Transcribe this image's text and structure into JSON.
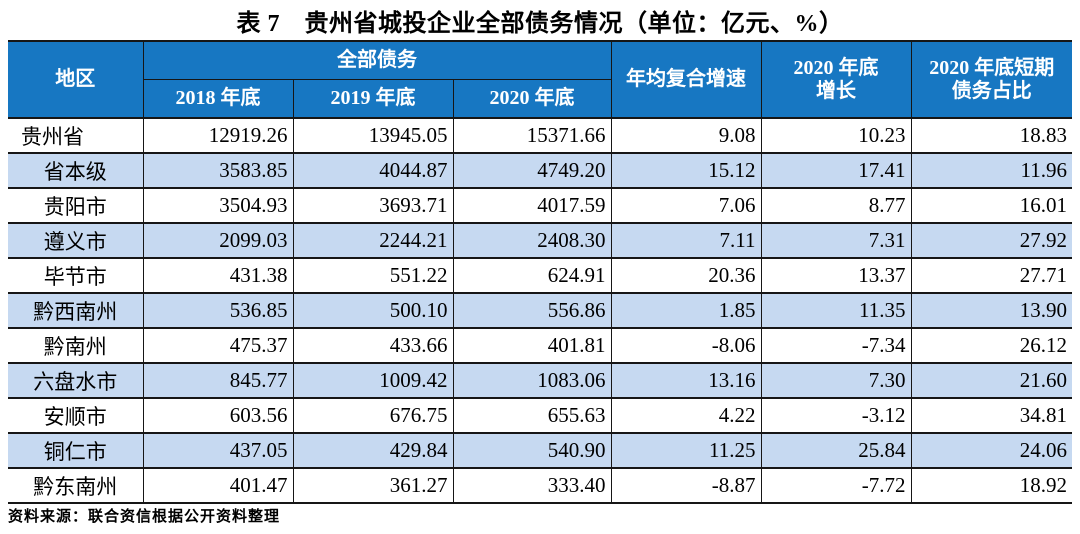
{
  "title": "表 7　贵州省城投企业全部债务情况（单位：亿元、%）",
  "colors": {
    "header_bg": "#1777c2",
    "stripe_bg": "#c6d9f1",
    "header_text": "#ffffff",
    "body_text": "#000000",
    "border": "#161616",
    "page_bg": "#ffffff"
  },
  "table": {
    "header": {
      "region": "地区",
      "total_debt_group": "全部债务",
      "year_2018": "2018 年底",
      "year_2019": "2019 年底",
      "year_2020": "2020 年底",
      "cagr": "年均复合增速",
      "growth_2020_line1": "2020 年底",
      "growth_2020_line2": "增长",
      "short_term_line1": "2020 年底短期",
      "short_term_line2": "债务占比"
    },
    "rows": [
      {
        "region": "贵州省",
        "values": [
          "12919.26",
          "13945.05",
          "15371.66",
          "9.08",
          "10.23",
          "18.83"
        ]
      },
      {
        "region": "省本级",
        "values": [
          "3583.85",
          "4044.87",
          "4749.20",
          "15.12",
          "17.41",
          "11.96"
        ]
      },
      {
        "region": "贵阳市",
        "values": [
          "3504.93",
          "3693.71",
          "4017.59",
          "7.06",
          "8.77",
          "16.01"
        ]
      },
      {
        "region": "遵义市",
        "values": [
          "2099.03",
          "2244.21",
          "2408.30",
          "7.11",
          "7.31",
          "27.92"
        ]
      },
      {
        "region": "毕节市",
        "values": [
          "431.38",
          "551.22",
          "624.91",
          "20.36",
          "13.37",
          "27.71"
        ]
      },
      {
        "region": "黔西南州",
        "values": [
          "536.85",
          "500.10",
          "556.86",
          "1.85",
          "11.35",
          "13.90"
        ]
      },
      {
        "region": "黔南州",
        "values": [
          "475.37",
          "433.66",
          "401.81",
          "-8.06",
          "-7.34",
          "26.12"
        ]
      },
      {
        "region": "六盘水市",
        "values": [
          "845.77",
          "1009.42",
          "1083.06",
          "13.16",
          "7.30",
          "21.60"
        ]
      },
      {
        "region": "安顺市",
        "values": [
          "603.56",
          "676.75",
          "655.63",
          "4.22",
          "-3.12",
          "34.81"
        ]
      },
      {
        "region": "铜仁市",
        "values": [
          "437.05",
          "429.84",
          "540.90",
          "11.25",
          "25.84",
          "24.06"
        ]
      },
      {
        "region": "黔东南州",
        "values": [
          "401.47",
          "361.27",
          "333.40",
          "-8.87",
          "-7.72",
          "18.92"
        ]
      }
    ]
  },
  "footer": {
    "source": "资料来源：联合资信根据公开资料整理"
  }
}
